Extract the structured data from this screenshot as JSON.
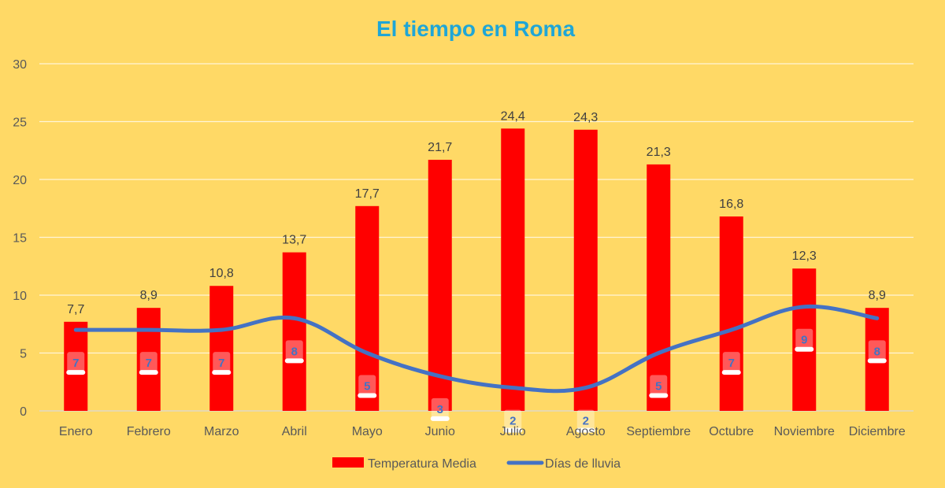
{
  "chart_data": {
    "type": "bar",
    "title": "El tiempo en Roma",
    "categories": [
      "Enero",
      "Febrero",
      "Marzo",
      "Abril",
      "Mayo",
      "Junio",
      "Julio",
      "Agosto",
      "Septiembre",
      "Octubre",
      "Noviembre",
      "Diciembre"
    ],
    "ylim": [
      0,
      30
    ],
    "yticks": [
      0,
      5,
      10,
      15,
      20,
      25,
      30
    ],
    "grid": true,
    "legend_position": "bottom",
    "series": [
      {
        "name": "Temperatura Media",
        "type": "bar",
        "color": "#ff0000",
        "values": [
          7.7,
          8.9,
          10.8,
          13.7,
          17.7,
          21.7,
          24.4,
          24.3,
          21.3,
          16.8,
          12.3,
          8.9
        ],
        "labels": [
          "7,7",
          "8,9",
          "10,8",
          "13,7",
          "17,7",
          "21,7",
          "24,4",
          "24,3",
          "21,3",
          "16,8",
          "12,3",
          "8,9"
        ]
      },
      {
        "name": "Días de lluvia",
        "type": "line",
        "color": "#4472c4",
        "values": [
          7,
          7,
          7,
          8,
          5,
          3,
          2,
          2,
          5,
          7,
          9,
          8
        ],
        "labels": [
          "7",
          "7",
          "7",
          "8",
          "5",
          "3",
          "2",
          "2",
          "5",
          "7",
          "9",
          "8"
        ]
      }
    ]
  }
}
